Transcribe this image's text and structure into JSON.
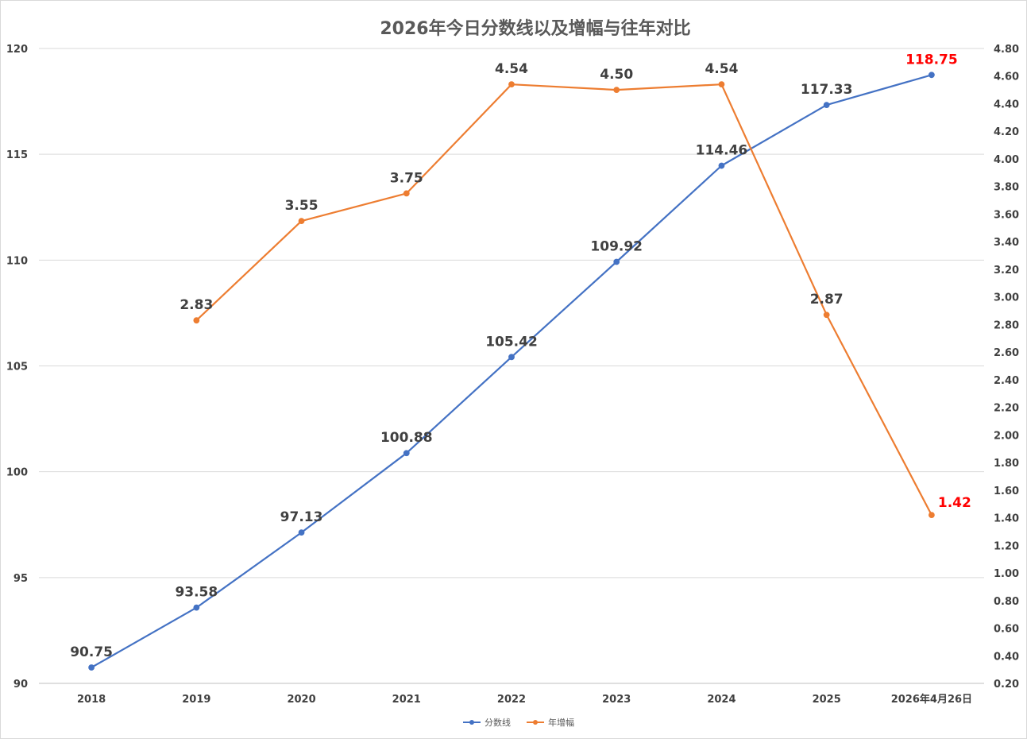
{
  "chart_data": {
    "type": "line",
    "title": "2026年今日分数线以及增幅与往年对比",
    "categories": [
      "2018",
      "2019",
      "2020",
      "2021",
      "2022",
      "2023",
      "2024",
      "2025",
      "2026年4月26日"
    ],
    "y_left": {
      "range": [
        90,
        120
      ],
      "ticks": [
        "90",
        "95",
        "100",
        "105",
        "110",
        "115",
        "120"
      ]
    },
    "y_right": {
      "range": [
        0.2,
        4.8
      ],
      "ticks": [
        "0.20",
        "0.40",
        "0.60",
        "0.80",
        "1.00",
        "1.20",
        "1.40",
        "1.60",
        "1.80",
        "2.00",
        "2.20",
        "2.40",
        "2.60",
        "2.80",
        "3.00",
        "3.20",
        "3.40",
        "3.60",
        "3.80",
        "4.00",
        "4.20",
        "4.40",
        "4.60",
        "4.80"
      ]
    },
    "grid": true,
    "legend_position": "bottom",
    "series": [
      {
        "name": "分数线",
        "axis": "left",
        "color": "#4472c4",
        "values": [
          90.75,
          93.58,
          97.13,
          100.88,
          105.42,
          109.92,
          114.46,
          117.33,
          118.75
        ],
        "labels": [
          "90.75",
          "93.58",
          "97.13",
          "100.88",
          "105.42",
          "109.92",
          "114.46",
          "117.33",
          "118.75"
        ],
        "highlight_last": true
      },
      {
        "name": "年增幅",
        "axis": "right",
        "color": "#ed7d31",
        "values": [
          null,
          2.83,
          3.55,
          3.75,
          4.54,
          4.5,
          4.54,
          2.87,
          1.42
        ],
        "labels": [
          null,
          "2.83",
          "3.55",
          "3.75",
          "4.54",
          "4.50",
          "4.54",
          "2.87",
          "1.42"
        ],
        "highlight_last": true
      }
    ],
    "highlight_color": "#ff0000",
    "label_color": "#404040"
  }
}
